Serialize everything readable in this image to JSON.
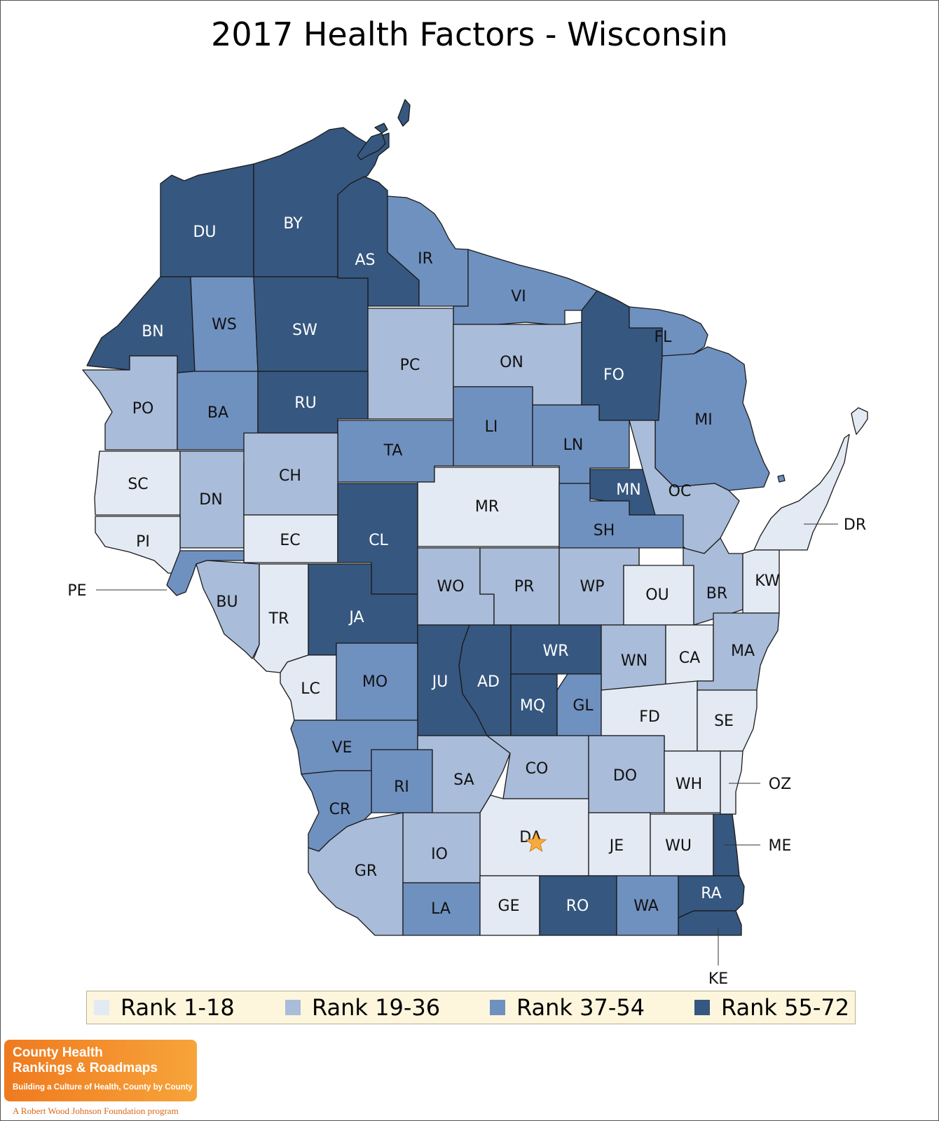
{
  "title": "2017 Health Factors - Wisconsin",
  "colors": {
    "rank_1_18": "#e3eaf3",
    "rank_19_36": "#a9bcd9",
    "rank_37_54": "#6f91c0",
    "rank_55_72": "#36577f",
    "border": "#1a1a1a",
    "capital_star": "#f7a93b",
    "legend_bg": "#fdf6dd",
    "logo_orange": "#f28c28"
  },
  "legend": [
    {
      "label": "Rank 1-18",
      "color": "#e3eaf3"
    },
    {
      "label": "Rank 19-36",
      "color": "#a9bcd9"
    },
    {
      "label": "Rank 37-54",
      "color": "#6f91c0"
    },
    {
      "label": "Rank 55-72",
      "color": "#36577f"
    }
  ],
  "counties": [
    {
      "abbr": "DU",
      "rank_group": "55-72"
    },
    {
      "abbr": "BY",
      "rank_group": "55-72"
    },
    {
      "abbr": "AS",
      "rank_group": "55-72"
    },
    {
      "abbr": "IR",
      "rank_group": "37-54"
    },
    {
      "abbr": "VI",
      "rank_group": "37-54"
    },
    {
      "abbr": "BN",
      "rank_group": "55-72"
    },
    {
      "abbr": "WS",
      "rank_group": "37-54"
    },
    {
      "abbr": "SW",
      "rank_group": "55-72"
    },
    {
      "abbr": "PC",
      "rank_group": "19-36"
    },
    {
      "abbr": "ON",
      "rank_group": "19-36"
    },
    {
      "abbr": "FO",
      "rank_group": "55-72"
    },
    {
      "abbr": "FL",
      "rank_group": "37-54"
    },
    {
      "abbr": "PO",
      "rank_group": "19-36"
    },
    {
      "abbr": "BA",
      "rank_group": "37-54"
    },
    {
      "abbr": "RU",
      "rank_group": "55-72"
    },
    {
      "abbr": "TA",
      "rank_group": "37-54"
    },
    {
      "abbr": "LI",
      "rank_group": "37-54"
    },
    {
      "abbr": "LN",
      "rank_group": "37-54"
    },
    {
      "abbr": "MI",
      "rank_group": "37-54"
    },
    {
      "abbr": "SC",
      "rank_group": "1-18"
    },
    {
      "abbr": "DN",
      "rank_group": "19-36"
    },
    {
      "abbr": "CH",
      "rank_group": "19-36"
    },
    {
      "abbr": "MR",
      "rank_group": "1-18"
    },
    {
      "abbr": "MN",
      "rank_group": "55-72"
    },
    {
      "abbr": "OC",
      "rank_group": "19-36"
    },
    {
      "abbr": "PI",
      "rank_group": "1-18"
    },
    {
      "abbr": "EC",
      "rank_group": "1-18"
    },
    {
      "abbr": "CL",
      "rank_group": "55-72"
    },
    {
      "abbr": "SH",
      "rank_group": "37-54"
    },
    {
      "abbr": "DR",
      "rank_group": "1-18"
    },
    {
      "abbr": "PE",
      "rank_group": "37-54"
    },
    {
      "abbr": "BU",
      "rank_group": "19-36"
    },
    {
      "abbr": "TR",
      "rank_group": "1-18"
    },
    {
      "abbr": "JA",
      "rank_group": "55-72"
    },
    {
      "abbr": "WO",
      "rank_group": "19-36"
    },
    {
      "abbr": "PR",
      "rank_group": "19-36"
    },
    {
      "abbr": "WP",
      "rank_group": "19-36"
    },
    {
      "abbr": "OU",
      "rank_group": "1-18"
    },
    {
      "abbr": "BR",
      "rank_group": "19-36"
    },
    {
      "abbr": "KW",
      "rank_group": "1-18"
    },
    {
      "abbr": "WR",
      "rank_group": "55-72"
    },
    {
      "abbr": "WN",
      "rank_group": "19-36"
    },
    {
      "abbr": "CA",
      "rank_group": "1-18"
    },
    {
      "abbr": "MA",
      "rank_group": "19-36"
    },
    {
      "abbr": "LC",
      "rank_group": "1-18"
    },
    {
      "abbr": "MO",
      "rank_group": "37-54"
    },
    {
      "abbr": "JU",
      "rank_group": "55-72"
    },
    {
      "abbr": "AD",
      "rank_group": "55-72"
    },
    {
      "abbr": "MQ",
      "rank_group": "55-72"
    },
    {
      "abbr": "GL",
      "rank_group": "37-54"
    },
    {
      "abbr": "FD",
      "rank_group": "1-18"
    },
    {
      "abbr": "SE",
      "rank_group": "1-18"
    },
    {
      "abbr": "VE",
      "rank_group": "37-54"
    },
    {
      "abbr": "RI",
      "rank_group": "37-54"
    },
    {
      "abbr": "SA",
      "rank_group": "19-36"
    },
    {
      "abbr": "CO",
      "rank_group": "19-36"
    },
    {
      "abbr": "DO",
      "rank_group": "19-36"
    },
    {
      "abbr": "WH",
      "rank_group": "1-18"
    },
    {
      "abbr": "OZ",
      "rank_group": "1-18"
    },
    {
      "abbr": "CR",
      "rank_group": "37-54"
    },
    {
      "abbr": "DA",
      "rank_group": "1-18"
    },
    {
      "abbr": "IO",
      "rank_group": "19-36"
    },
    {
      "abbr": "JE",
      "rank_group": "1-18"
    },
    {
      "abbr": "WU",
      "rank_group": "1-18"
    },
    {
      "abbr": "ME",
      "rank_group": "55-72"
    },
    {
      "abbr": "GR",
      "rank_group": "19-36"
    },
    {
      "abbr": "LA",
      "rank_group": "37-54"
    },
    {
      "abbr": "GE",
      "rank_group": "1-18"
    },
    {
      "abbr": "RO",
      "rank_group": "55-72"
    },
    {
      "abbr": "WA",
      "rank_group": "37-54"
    },
    {
      "abbr": "RA",
      "rank_group": "55-72"
    },
    {
      "abbr": "KE",
      "rank_group": "55-72"
    }
  ],
  "logo": {
    "line1": "County Health",
    "line2": "Rankings & Roadmaps",
    "tagline": "Building a Culture of Health, County by County",
    "sponsor": "A Robert Wood Johnson Foundation program"
  }
}
